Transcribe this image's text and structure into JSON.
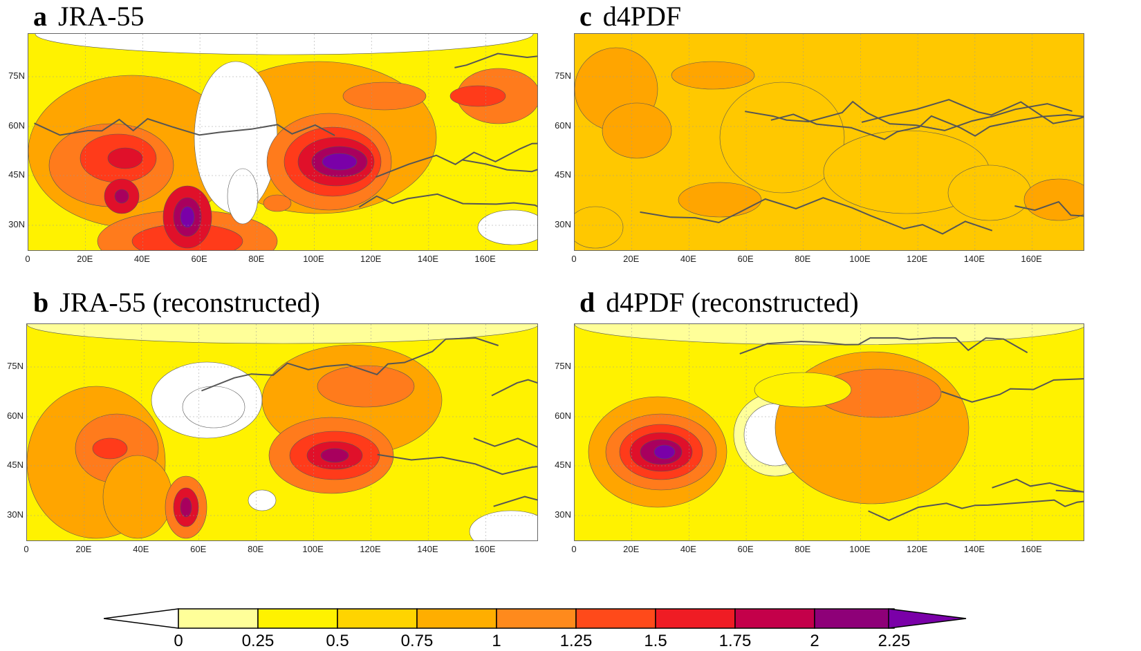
{
  "panels": [
    {
      "id": "a",
      "letter": "a",
      "title": "JRA-55"
    },
    {
      "id": "c",
      "letter": "c",
      "title": "d4PDF"
    },
    {
      "id": "b",
      "letter": "b",
      "title": "JRA-55 (reconstructed)"
    },
    {
      "id": "d",
      "letter": "d",
      "title": "d4PDF (reconstructed)"
    }
  ],
  "lat_ticks": [
    "75N",
    "60N",
    "45N",
    "30N"
  ],
  "lon_ticks": [
    "0",
    "20E",
    "40E",
    "60E",
    "80E",
    "100E",
    "120E",
    "140E",
    "160E"
  ],
  "colorbar": {
    "labels": [
      "0",
      "0.25",
      "0.5",
      "0.75",
      "1",
      "1.25",
      "1.5",
      "1.75",
      "2",
      "2.25"
    ],
    "colors": [
      "#ffffff",
      "#ffff99",
      "#fff200",
      "#ffc800",
      "#ffa500",
      "#ff7b1c",
      "#ff3b1a",
      "#e0102a",
      "#a8005e",
      "#7a00a8"
    ]
  }
}
